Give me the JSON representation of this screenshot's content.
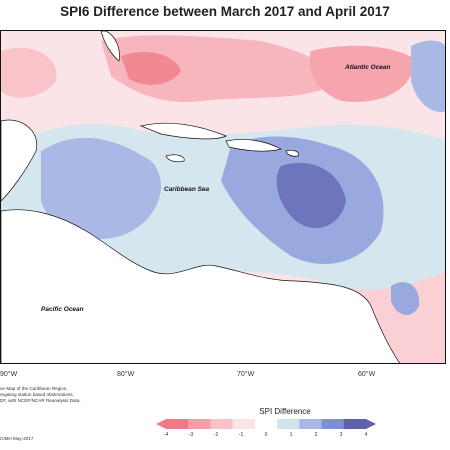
{
  "title": "SPI6 Difference between March 2017 and April 2017",
  "map": {
    "ocean_labels": {
      "atlantic": "Atlantic Ocean",
      "caribbean": "Caribbean Sea",
      "pacific": "Pacific Ocean"
    },
    "longitude_labels": [
      "90°W",
      "80°W",
      "70°W",
      "60°W"
    ]
  },
  "credits": [
    "on Map of the Caribbean Region.",
    "regating station based observations,",
    "DF, with NCEP/NCAR Reanalysis Data."
  ],
  "date": "CIMH May-2017",
  "legend": {
    "title": "SPI Difference",
    "ticks": [
      "-4",
      "-3",
      "-2",
      "-1",
      "0",
      "1",
      "2",
      "3",
      "4"
    ],
    "colors": [
      "#f07a86",
      "#f59ea6",
      "#f9c2c7",
      "#fce3e6",
      "#ffffff",
      "#cfe3ea",
      "#a8b8e6",
      "#7e8ed8",
      "#5d62aa"
    ]
  }
}
